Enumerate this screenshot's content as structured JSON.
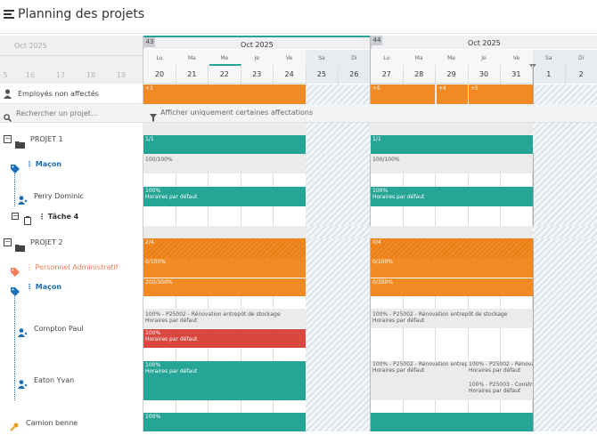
{
  "header": {
    "title": "Planning des projets"
  },
  "left_header": {
    "month": "Oct  2025",
    "days": [
      "5",
      "16",
      "17",
      "18",
      "19"
    ],
    "week_label": "5"
  },
  "weeks": [
    {
      "num": "43",
      "month": "Oct  2025"
    },
    {
      "num": "44",
      "month": "Oct  2025"
    }
  ],
  "days": [
    {
      "dow": "Lu",
      "num": "20"
    },
    {
      "dow": "Ma",
      "num": "21"
    },
    {
      "dow": "Me",
      "num": "22"
    },
    {
      "dow": "Je",
      "num": "23"
    },
    {
      "dow": "Ve",
      "num": "24"
    },
    {
      "dow": "Sa",
      "num": "25"
    },
    {
      "dow": "Di",
      "num": "26"
    },
    {
      "dow": "Lu",
      "num": "27"
    },
    {
      "dow": "Ma",
      "num": "28"
    },
    {
      "dow": "Me",
      "num": "29"
    },
    {
      "dow": "Je",
      "num": "30"
    },
    {
      "dow": "Ve",
      "num": "31"
    },
    {
      "dow": "Sa",
      "num": "1"
    },
    {
      "dow": "Di",
      "num": "2"
    }
  ],
  "unassigned": {
    "label": "Employés non affectés",
    "bars": [
      "+1",
      "+5",
      "+4",
      "+5"
    ]
  },
  "search": {
    "placeholder": "Rechercher un projet...",
    "filter": "Afficher uniquement certaines affectations"
  },
  "project1": {
    "label": "PROJET 1",
    "group": "Maçon",
    "group_bars": [
      "1/1",
      "1/1"
    ],
    "group_sub": [
      "100/100%",
      "100/100%"
    ],
    "employee": "Perry Dominic",
    "emp_bar1": [
      "100%",
      "Horaires par défaut"
    ],
    "emp_bar2": [
      "100%",
      "Horaires par défaut"
    ],
    "task": "Tâche 4"
  },
  "project2": {
    "label": "PROJET 2",
    "group_admin": "Personnel Administratif",
    "admin_bars": [
      "2/4",
      "0/4"
    ],
    "admin_sub": [
      "0/100%",
      "0/100%"
    ],
    "group_macon": "Maçon",
    "macon_sub": [
      "200/300%",
      "0/300%"
    ],
    "emp1": "Compton Paul",
    "emp1_gray1": [
      "100% - P25002 - Rénovation entrepôt de stockage",
      "Horaires par défaut"
    ],
    "emp1_gray2": [
      "100% - P25002 - Rénovation entrepôt de stockage",
      "Horaires par défaut"
    ],
    "emp1_red": [
      "100%",
      "Horaires par défaut"
    ],
    "emp2": "Eaton Yvan",
    "emp2_teal": [
      "100%",
      "Horaires par défaut"
    ],
    "emp2_gray1": [
      "100% - P25002 - Rénovation entrepôt de st",
      "Horaires par défaut"
    ],
    "emp2_gray2": [
      "100% - P25002 - Rénovation",
      "Horaires par défaut"
    ],
    "emp2_gray3": [
      "100% - P25003 - Constructio",
      "Horaires par défaut"
    ],
    "truck": "Camion benne",
    "truck_bar": "100%"
  },
  "colors": {
    "orange": "#f28a23",
    "teal": "#26a596",
    "red": "#d9473f",
    "blue": "#1c6fb5"
  }
}
